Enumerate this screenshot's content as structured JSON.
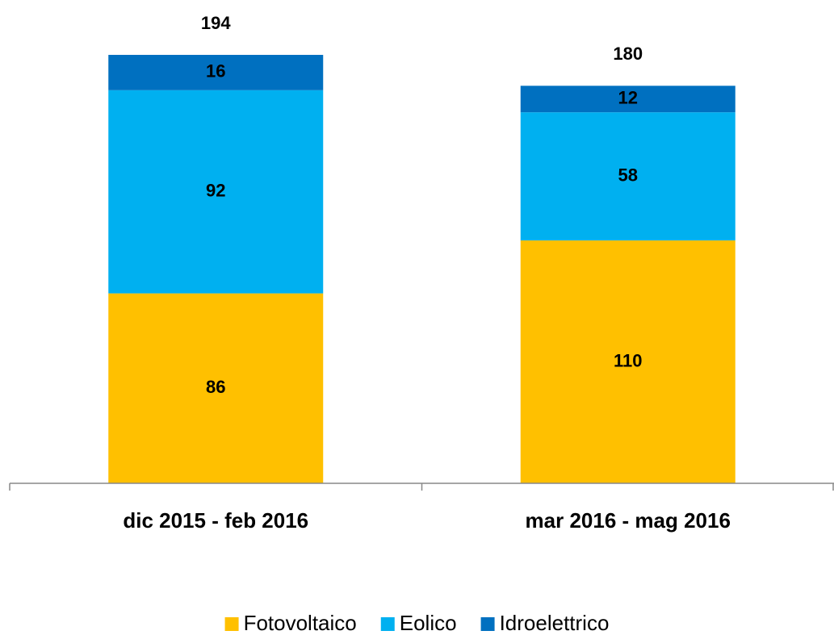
{
  "chart_data": {
    "type": "stacked_bar",
    "categories": [
      "dic 2015 - feb 2016",
      "mar 2016 - mag 2016"
    ],
    "series": [
      {
        "name": "Fotovoltaico",
        "color": "#ffc000",
        "values": [
          86,
          110
        ]
      },
      {
        "name": "Eolico",
        "color": "#00b0f0",
        "values": [
          92,
          58
        ]
      },
      {
        "name": "Idroelettrico",
        "color": "#0070c0",
        "values": [
          16,
          12
        ]
      }
    ],
    "totals": [
      194,
      180
    ],
    "legend": "bottom"
  }
}
